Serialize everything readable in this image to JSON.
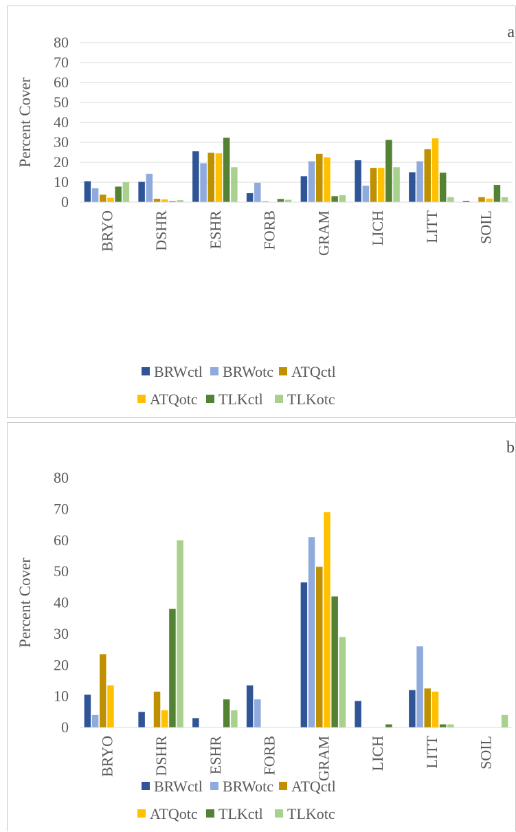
{
  "series_colors": {
    "BRWctl": "#2f5597",
    "BRWotc": "#8faadc",
    "ATQctl": "#bf9000",
    "ATQotc": "#ffc000",
    "TLKctl": "#548235",
    "TLKotc": "#a9d18e"
  },
  "legend_layout": "bottom",
  "chart_data": [
    {
      "type": "bar",
      "panel_label": "a",
      "ylabel": "Percent Cover",
      "ylim": [
        0,
        80
      ],
      "yticks": [
        "0",
        "10",
        "20",
        "30",
        "40",
        "50",
        "60",
        "70",
        "80"
      ],
      "grid": true,
      "legend": "bottom",
      "categories": [
        "BRYO",
        "DSHR",
        "ESHR",
        "FORB",
        "GRAM",
        "LICH",
        "LITT",
        "SOIL"
      ],
      "series": [
        {
          "name": "BRWctl",
          "values": [
            10.5,
            10.2,
            25.5,
            4.5,
            13.0,
            21.0,
            15.0,
            0.6
          ]
        },
        {
          "name": "BRWotc",
          "values": [
            7.0,
            14.2,
            19.5,
            9.7,
            20.5,
            8.3,
            20.5,
            0.0
          ]
        },
        {
          "name": "ATQctl",
          "values": [
            3.8,
            1.7,
            24.8,
            0.4,
            24.2,
            17.2,
            26.5,
            2.5
          ]
        },
        {
          "name": "ATQotc",
          "values": [
            2.2,
            1.4,
            24.5,
            0.0,
            22.5,
            17.2,
            32.0,
            1.8
          ]
        },
        {
          "name": "TLKctl",
          "values": [
            7.8,
            0.5,
            32.3,
            1.6,
            3.0,
            31.2,
            14.8,
            8.6
          ]
        },
        {
          "name": "TLKotc",
          "values": [
            10.0,
            1.0,
            17.5,
            1.2,
            3.5,
            17.5,
            2.5,
            2.5
          ]
        }
      ]
    },
    {
      "type": "bar",
      "panel_label": "b",
      "ylabel": "Percent Cover",
      "ylim": [
        0,
        80
      ],
      "yticks": [
        "0",
        "10",
        "20",
        "30",
        "40",
        "50",
        "60",
        "70",
        "80"
      ],
      "grid": false,
      "legend": "bottom",
      "categories": [
        "BRYO",
        "DSHR",
        "ESHR",
        "FORB",
        "GRAM",
        "LICH",
        "LITT",
        "SOIL"
      ],
      "series": [
        {
          "name": "BRWctl",
          "values": [
            10.5,
            5.0,
            3.0,
            13.5,
            46.5,
            8.5,
            12.0,
            0.0
          ]
        },
        {
          "name": "BRWotc",
          "values": [
            4.0,
            0.0,
            0.0,
            9.0,
            61.0,
            0.0,
            26.0,
            0.0
          ]
        },
        {
          "name": "ATQctl",
          "values": [
            23.5,
            11.5,
            0.0,
            0.0,
            51.5,
            0.0,
            12.5,
            0.0
          ]
        },
        {
          "name": "ATQotc",
          "values": [
            13.5,
            5.5,
            0.0,
            0.0,
            69.0,
            0.0,
            11.5,
            0.0
          ]
        },
        {
          "name": "TLKctl",
          "values": [
            0.0,
            38.0,
            9.0,
            0.0,
            42.0,
            1.0,
            1.0,
            0.0
          ]
        },
        {
          "name": "TLKotc",
          "values": [
            0.0,
            60.0,
            5.5,
            0.0,
            29.0,
            0.0,
            1.0,
            4.0
          ]
        }
      ]
    }
  ]
}
